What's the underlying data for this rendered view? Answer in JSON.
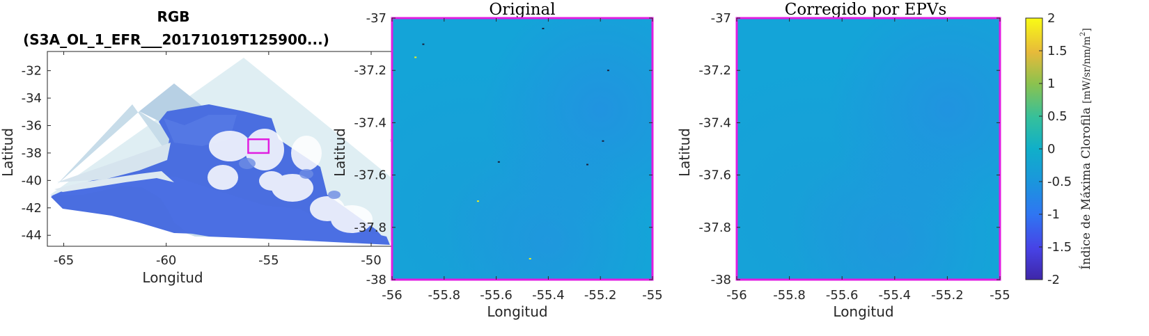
{
  "chart_data": [
    {
      "type": "image",
      "title_line1": "RGB",
      "title_line2": "(S3A_OL_1_EFR___20171019T125900...)",
      "xlabel": "Longitud",
      "ylabel": "Latitud",
      "xlim": [
        -65.8,
        -46.5
      ],
      "ylim": [
        -44.8,
        -30.6
      ],
      "xticks": [
        -65,
        -60,
        -55,
        -50
      ],
      "yticks": [
        -32,
        -34,
        -36,
        -38,
        -40,
        -42,
        -44
      ],
      "xtick_labels": [
        "-65",
        "-60",
        "-55",
        "-50"
      ],
      "ytick_labels": [
        "-32",
        "-34",
        "-36",
        "-38",
        "-40",
        "-42",
        "-44"
      ],
      "highlight_box": {
        "lon": [
          -56,
          -55
        ],
        "lat": [
          -38,
          -37
        ],
        "color": "#e01de0"
      }
    },
    {
      "type": "heatmap",
      "title": "Original",
      "xlabel": "Longitud",
      "ylabel": "Latitud",
      "xlim": [
        -56,
        -55
      ],
      "ylim": [
        -38,
        -37
      ],
      "xticks": [
        -56,
        -55.8,
        -55.6,
        -55.4,
        -55.2,
        -55
      ],
      "yticks": [
        -37,
        -37.2,
        -37.4,
        -37.6,
        -37.8,
        -38
      ],
      "xtick_labels": [
        "-56",
        "-55.8",
        "-55.6",
        "-55.4",
        "-55.2",
        "-55"
      ],
      "ytick_labels": [
        "-37",
        "-37.2",
        "-37.4",
        "-37.6",
        "-37.8",
        "-38"
      ],
      "frame_color": "#e01de0",
      "base_value": -0.2,
      "outliers": [
        {
          "lon": -55.91,
          "lat": -37.15,
          "value": 1.8
        },
        {
          "lon": -55.47,
          "lat": -37.92,
          "value": 1.9
        },
        {
          "lon": -55.67,
          "lat": -37.7,
          "value": 1.6
        },
        {
          "lon": -55.88,
          "lat": -37.1,
          "value": -2.0
        },
        {
          "lon": -55.59,
          "lat": -37.55,
          "value": -2.0
        },
        {
          "lon": -55.19,
          "lat": -37.47,
          "value": -2.0
        },
        {
          "lon": -55.25,
          "lat": -37.56,
          "value": -2.0
        },
        {
          "lon": -55.42,
          "lat": -37.04,
          "value": -1.9
        },
        {
          "lon": -55.17,
          "lat": -37.2,
          "value": -2.0
        }
      ]
    },
    {
      "type": "heatmap",
      "title": "Corregido por EPVs",
      "xlabel": "Longitud",
      "ylabel": "Latitud",
      "xlim": [
        -56,
        -55
      ],
      "ylim": [
        -38,
        -37
      ],
      "xticks": [
        -56,
        -55.8,
        -55.6,
        -55.4,
        -55.2,
        -55
      ],
      "yticks": [
        -37,
        -37.2,
        -37.4,
        -37.6,
        -37.8,
        -38
      ],
      "xtick_labels": [
        "-56",
        "-55.8",
        "-55.6",
        "-55.4",
        "-55.2",
        "-55"
      ],
      "ytick_labels": [
        "-37",
        "-37.2",
        "-37.4",
        "-37.6",
        "-37.8",
        "-38"
      ],
      "frame_color": "#e01de0",
      "base_value": -0.2,
      "outliers": []
    }
  ],
  "colorbar": {
    "label_main": "Índice de Máxima Clorofila",
    "label_unit": "[mW/sr/nm/m",
    "label_sup": "2",
    "label_close": "]",
    "range": [
      -2,
      2
    ],
    "ticks": [
      2,
      1.5,
      1,
      0.5,
      0,
      -0.5,
      -1,
      -1.5,
      -2
    ],
    "tick_labels": [
      "2",
      "1.5",
      "1",
      "0.5",
      "0",
      "-0.5",
      "-1",
      "-1.5",
      "-2"
    ],
    "colormap": "parula"
  }
}
